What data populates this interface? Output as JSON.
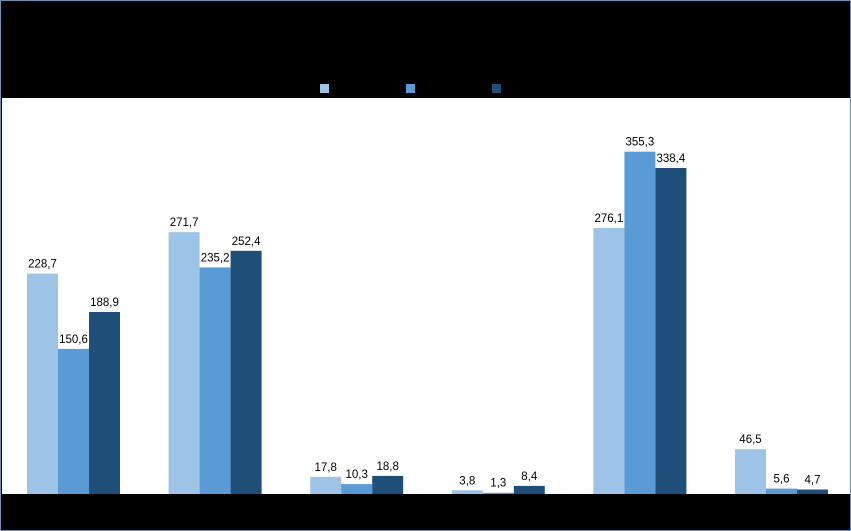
{
  "chart_data": {
    "type": "bar",
    "title": "",
    "xlabel": "",
    "ylabel": "",
    "categories": [
      "",
      "",
      "",
      "",
      "",
      ""
    ],
    "series": [
      {
        "name": "",
        "color": "#9dc3e6",
        "values": [
          228.7,
          271.7,
          17.8,
          3.8,
          276.1,
          46.5
        ]
      },
      {
        "name": "",
        "color": "#5b9bd5",
        "values": [
          150.6,
          235.2,
          10.3,
          1.3,
          355.3,
          5.6
        ]
      },
      {
        "name": "",
        "color": "#1f4e79",
        "values": [
          188.9,
          252.4,
          18.8,
          8.4,
          338.4,
          4.7
        ]
      }
    ],
    "data_labels": [
      [
        "228,7",
        "271,7",
        "17,8",
        "3,8",
        "276,1",
        "46,5"
      ],
      [
        "150,6",
        "235,2",
        "10,3",
        "1,3",
        "355,3",
        "5,6"
      ],
      [
        "188,9",
        "252,4",
        "18,8",
        "8,4",
        "338,4",
        "4,7"
      ]
    ],
    "ylim": [
      0,
      400
    ],
    "grid": false,
    "legend_position": "top-center"
  }
}
